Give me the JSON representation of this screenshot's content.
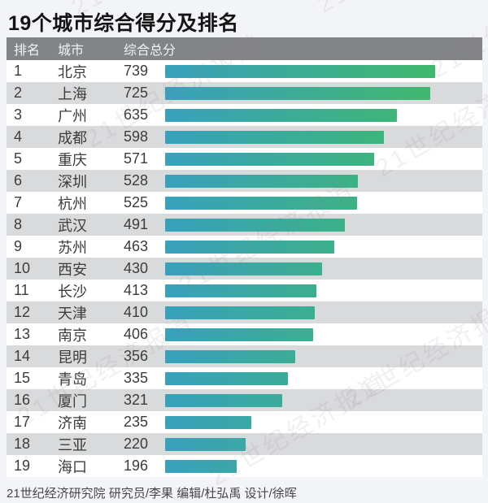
{
  "title": "19个城市综合得分及排名",
  "table": {
    "headers": {
      "rank": "排名",
      "city": "城市",
      "score": "综合总分"
    },
    "rows": [
      {
        "rank": "1",
        "city": "北京",
        "score": 739
      },
      {
        "rank": "2",
        "city": "上海",
        "score": 725
      },
      {
        "rank": "3",
        "city": "广州",
        "score": 635
      },
      {
        "rank": "4",
        "city": "成都",
        "score": 598
      },
      {
        "rank": "5",
        "city": "重庆",
        "score": 571
      },
      {
        "rank": "6",
        "city": "深圳",
        "score": 528
      },
      {
        "rank": "7",
        "city": "杭州",
        "score": 525
      },
      {
        "rank": "8",
        "city": "武汉",
        "score": 491
      },
      {
        "rank": "9",
        "city": "苏州",
        "score": 463
      },
      {
        "rank": "10",
        "city": "西安",
        "score": 430
      },
      {
        "rank": "11",
        "city": "长沙",
        "score": 413
      },
      {
        "rank": "12",
        "city": "天津",
        "score": 410
      },
      {
        "rank": "13",
        "city": "南京",
        "score": 406
      },
      {
        "rank": "14",
        "city": "昆明",
        "score": 356
      },
      {
        "rank": "15",
        "city": "青岛",
        "score": 335
      },
      {
        "rank": "16",
        "city": "厦门",
        "score": 321
      },
      {
        "rank": "17",
        "city": "济南",
        "score": 235
      },
      {
        "rank": "18",
        "city": "三亚",
        "score": 220
      },
      {
        "rank": "19",
        "city": "海口",
        "score": 196
      }
    ]
  },
  "footer": {
    "credits": "21世纪经济研究院 研究员/李果  编辑/杜弘禹  设计/徐晖"
  },
  "watermark": {
    "text": "21世纪经济报道"
  },
  "colors": {
    "page_bg": "#f3f4f8",
    "header_bg": "#828487",
    "alt_row_bg": "#d9dadb",
    "bar_gradient_start": "#38a1bd",
    "bar_gradient_end": "#3eb96c"
  },
  "chart_data": {
    "type": "bar",
    "orientation": "horizontal",
    "title": "19个城市综合得分及排名",
    "categories": [
      "北京",
      "上海",
      "广州",
      "成都",
      "重庆",
      "深圳",
      "杭州",
      "武汉",
      "苏州",
      "西安",
      "长沙",
      "天津",
      "南京",
      "昆明",
      "青岛",
      "厦门",
      "济南",
      "三亚",
      "海口"
    ],
    "values": [
      739,
      725,
      635,
      598,
      571,
      528,
      525,
      491,
      463,
      430,
      413,
      410,
      406,
      356,
      335,
      321,
      235,
      220,
      196
    ],
    "xlabel": "综合总分",
    "ylabel": "城市",
    "xlim": [
      0,
      739
    ],
    "grid": false,
    "legend": false,
    "bar_color": "gradient teal #38a1bd to green #3eb96c, shared scale across bars"
  }
}
